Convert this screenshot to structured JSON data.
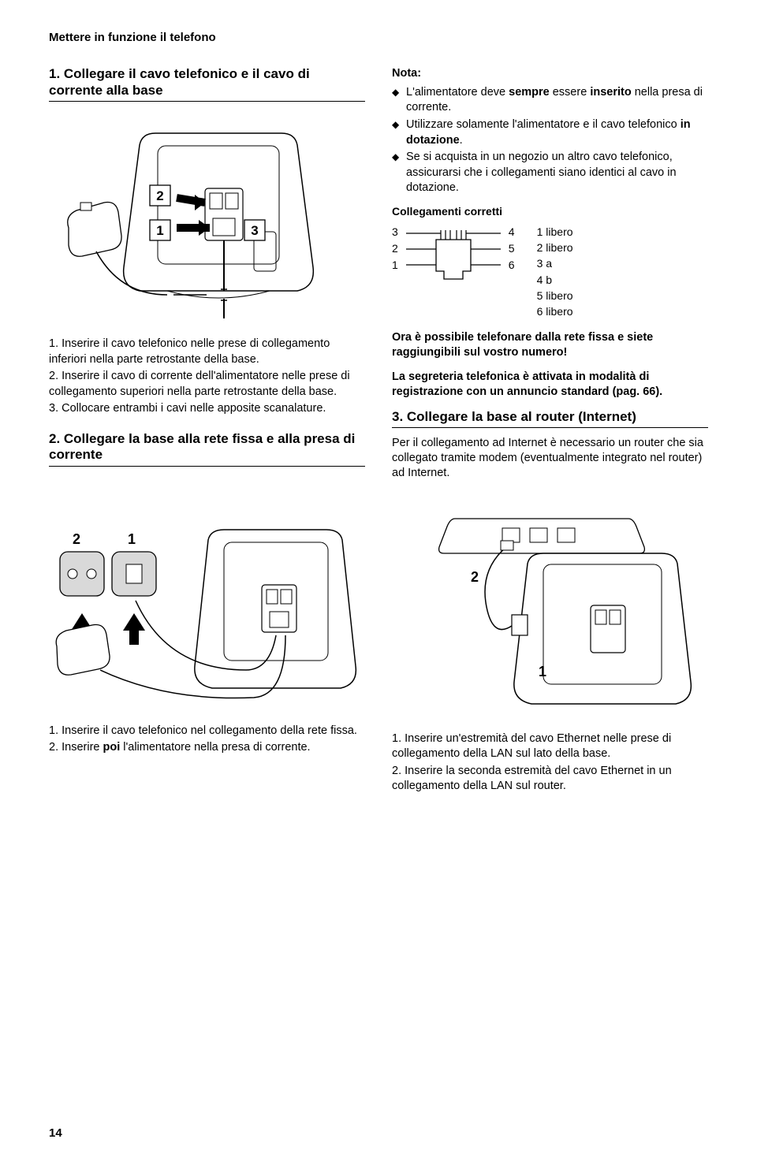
{
  "header": "Mettere in funzione il telefono",
  "left": {
    "sec1_title": "1. Collegare il cavo telefonico e il cavo di corrente alla base",
    "fig1": {
      "labels": [
        "1",
        "2",
        "3"
      ]
    },
    "steps1": [
      "1. Inserire il cavo telefonico nelle prese di collegamento inferiori nella parte retrostante della base.",
      "2. Inserire il cavo di corrente dell'alimentatore nelle prese di collegamento superiori nella parte retrostante della base.",
      "3. Collocare entrambi i cavi nelle apposite scanalature."
    ],
    "sec2_title": "2. Collegare la base alla rete fissa e alla presa di corrente",
    "fig2": {
      "labels": [
        "1",
        "2"
      ]
    },
    "steps2": [
      "1. Inserire il cavo telefonico nel collegamento della rete fissa.",
      "2. Inserire poi l'alimentatore nella presa di corrente."
    ]
  },
  "right": {
    "note_head": "Nota:",
    "note_items_html": [
      "L'alimentatore deve <b>sempre</b> essere <b>inserito</b> nella presa di corrente.",
      "Utilizzare solamente l'alimentatore e il cavo telefonico <b>in dotazione</b>.",
      "Se si acquista in un negozio un altro cavo telefonico, assicurarsi che i collegamenti siano identici al cavo in dotazione."
    ],
    "conn_head": "Collegamenti corretti",
    "pins_left": [
      "3",
      "2",
      "1"
    ],
    "pins_right": [
      "4",
      "5",
      "6"
    ],
    "pin_legend": [
      "1 libero",
      "2 libero",
      "3 a",
      "4 b",
      "5 libero",
      "6 libero"
    ],
    "bold1": "Ora è possibile telefonare dalla rete fissa e siete raggiungibili sul vostro numero!",
    "bold2": "La segreteria telefonica è attivata in modalità di registrazione con un annuncio standard (pag. 66).",
    "sec3_title": "3. Collegare la base al router (Internet)",
    "para3": "Per il collegamento ad Internet è necessario un router che sia collegato tramite modem (eventualmente integrato nel router) ad Internet.",
    "fig3": {
      "labels": [
        "1",
        "2"
      ]
    },
    "steps3": [
      "1. Inserire un'estremità del cavo Ethernet nelle prese di collegamento della LAN sul lato della base.",
      "2. Inserire la seconda estremità del cavo Ethernet in un collegamento della LAN sul router."
    ]
  },
  "pagenum": "14",
  "colors": {
    "line": "#000000",
    "fill_light": "#ffffff",
    "fill_gray": "#d9d9d9"
  }
}
